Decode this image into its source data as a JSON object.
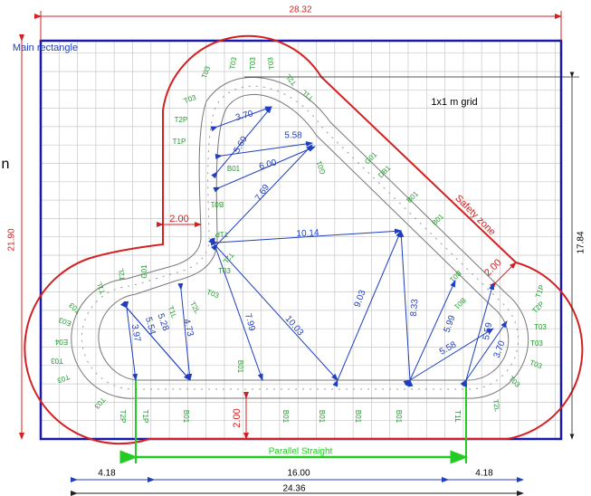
{
  "drawing": {
    "overall_width": "28.32",
    "overall_height": "21.90",
    "inner_height": "17.84",
    "main_rectangle": "Main rectangle",
    "grid_label": "1x1 m grid",
    "side_text": "n",
    "safety_zone": "Safety zone",
    "clearances": [
      "2.00",
      "2.00",
      "2.00"
    ],
    "parallel_straight": "Parallel Straight",
    "bottom_dimensions": [
      "4.18",
      "16.00",
      "4.18",
      "24.36"
    ],
    "measurements": [
      "3.70",
      "5.58",
      "5.60",
      "6.00",
      "7.69",
      "10.14",
      "7.99",
      "10.03",
      "9.03",
      "8.33",
      "5.99",
      "5.58",
      "5.59",
      "3.70",
      "3.97",
      "5.54",
      "5.28",
      "4.73"
    ],
    "track_labels": [
      "T03",
      "T03",
      "T03",
      "T03",
      "T2L",
      "T1L",
      "T03",
      "T2P",
      "T1P",
      "B01",
      "B01",
      "G01",
      "G01",
      "DB1",
      "B01",
      "B01",
      "B01",
      "B01",
      "T1P",
      "T2P",
      "T03",
      "T03",
      "T03",
      "T03",
      "T2L",
      "T1L",
      "B01",
      "B01",
      "B01",
      "B01",
      "B01",
      "B01",
      "T1P",
      "T2P",
      "T03",
      "T03",
      "T03",
      "E04",
      "E03",
      "T03",
      "T1L",
      "T2L",
      "G01",
      "T1P",
      "T2L",
      "T03",
      "T03",
      "T2L",
      "T1L"
    ]
  }
}
